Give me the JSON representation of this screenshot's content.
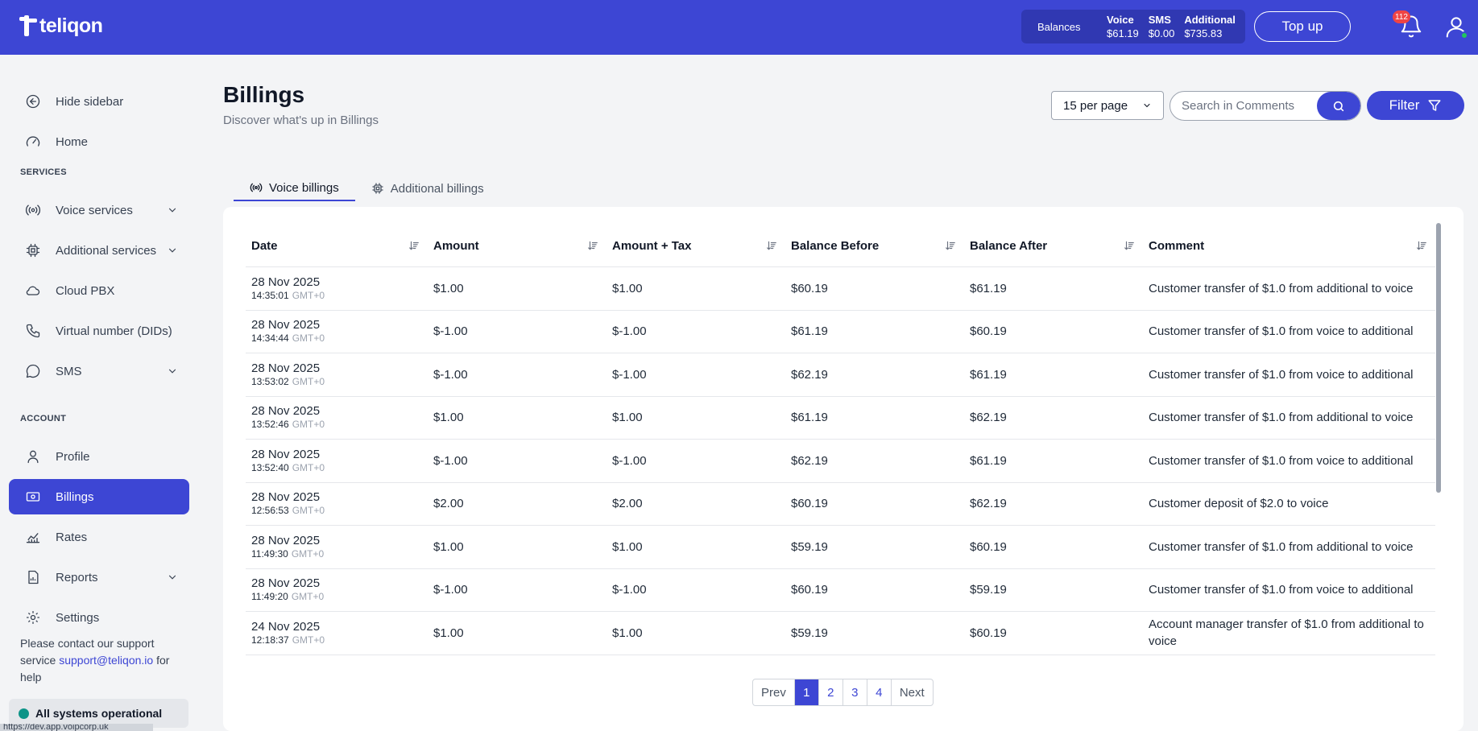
{
  "header": {
    "logo_text": "teliqon",
    "balances_label": "Balances",
    "balances": [
      {
        "label": "Voice",
        "value": "$61.19"
      },
      {
        "label": "SMS",
        "value": "$0.00"
      },
      {
        "label": "Additional",
        "value": "$735.83"
      }
    ],
    "topup_label": "Top up",
    "notification_count": "112"
  },
  "sidebar": {
    "hide": "Hide sidebar",
    "home": "Home",
    "services_heading": "SERVICES",
    "voice_services": "Voice services",
    "additional_services": "Additional services",
    "cloud_pbx": "Cloud PBX",
    "virtual_number": "Virtual number (DIDs)",
    "sms": "SMS",
    "account_heading": "ACCOUNT",
    "profile": "Profile",
    "billings": "Billings",
    "rates": "Rates",
    "reports": "Reports",
    "settings": "Settings",
    "support_pre": "Please contact our support service ",
    "support_email": "support@teliqon.io",
    "support_post": " for help",
    "status": "All systems operational",
    "url": "https://dev.app.voipcorp.uk"
  },
  "main": {
    "title": "Billings",
    "subtitle": "Discover what's up in Billings",
    "per_page": "15 per page",
    "search_placeholder": "Search in Comments",
    "filter_label": "Filter",
    "tabs": [
      "Voice billings",
      "Additional billings"
    ]
  },
  "table": {
    "columns": [
      "Date",
      "Amount",
      "Amount + Tax",
      "Balance Before",
      "Balance After",
      "Comment"
    ],
    "rows": [
      {
        "date": "28 Nov 2025",
        "time": "14:35:01",
        "tz": "GMT+0",
        "amount": "$1.00",
        "amount_tax": "$1.00",
        "before": "$60.19",
        "after": "$61.19",
        "comment": "Customer transfer of $1.0 from additional to voice"
      },
      {
        "date": "28 Nov 2025",
        "time": "14:34:44",
        "tz": "GMT+0",
        "amount": "$-1.00",
        "amount_tax": "$-1.00",
        "before": "$61.19",
        "after": "$60.19",
        "comment": "Customer transfer of $1.0 from voice to additional"
      },
      {
        "date": "28 Nov 2025",
        "time": "13:53:02",
        "tz": "GMT+0",
        "amount": "$-1.00",
        "amount_tax": "$-1.00",
        "before": "$62.19",
        "after": "$61.19",
        "comment": "Customer transfer of $1.0 from voice to additional"
      },
      {
        "date": "28 Nov 2025",
        "time": "13:52:46",
        "tz": "GMT+0",
        "amount": "$1.00",
        "amount_tax": "$1.00",
        "before": "$61.19",
        "after": "$62.19",
        "comment": "Customer transfer of $1.0 from additional to voice"
      },
      {
        "date": "28 Nov 2025",
        "time": "13:52:40",
        "tz": "GMT+0",
        "amount": "$-1.00",
        "amount_tax": "$-1.00",
        "before": "$62.19",
        "after": "$61.19",
        "comment": "Customer transfer of $1.0 from voice to additional"
      },
      {
        "date": "28 Nov 2025",
        "time": "12:56:53",
        "tz": "GMT+0",
        "amount": "$2.00",
        "amount_tax": "$2.00",
        "before": "$60.19",
        "after": "$62.19",
        "comment": "Customer deposit of $2.0 to voice"
      },
      {
        "date": "28 Nov 2025",
        "time": "11:49:30",
        "tz": "GMT+0",
        "amount": "$1.00",
        "amount_tax": "$1.00",
        "before": "$59.19",
        "after": "$60.19",
        "comment": "Customer transfer of $1.0 from additional to voice"
      },
      {
        "date": "28 Nov 2025",
        "time": "11:49:20",
        "tz": "GMT+0",
        "amount": "$-1.00",
        "amount_tax": "$-1.00",
        "before": "$60.19",
        "after": "$59.19",
        "comment": "Customer transfer of $1.0 from voice to additional"
      },
      {
        "date": "24 Nov 2025",
        "time": "12:18:37",
        "tz": "GMT+0",
        "amount": "$1.00",
        "amount_tax": "$1.00",
        "before": "$59.19",
        "after": "$60.19",
        "comment": "Account manager transfer of $1.0 from additional to voice"
      }
    ]
  },
  "pagination": {
    "prev": "Prev",
    "pages": [
      "1",
      "2",
      "3",
      "4"
    ],
    "current": "1",
    "next": "Next"
  },
  "colors": {
    "brand": "#3d46d4",
    "status_ok": "#0d9488",
    "badge": "#ef4444"
  }
}
